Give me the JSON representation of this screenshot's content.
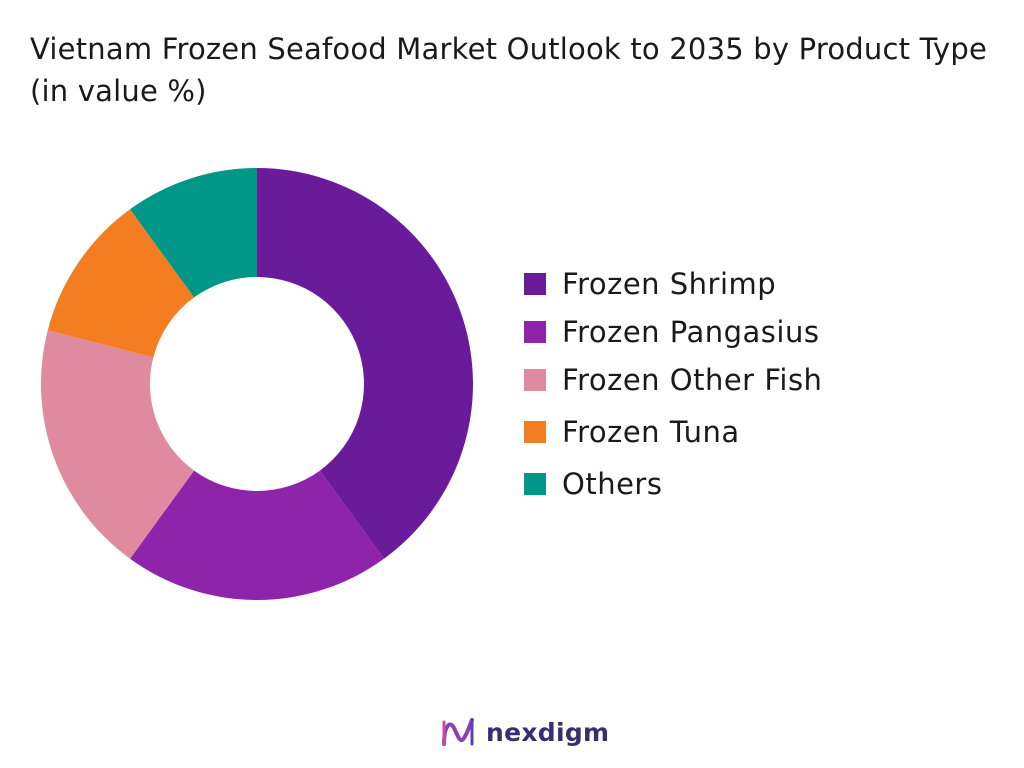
{
  "chart_data": {
    "type": "pie",
    "donut": true,
    "title": "Vietnam Frozen Seafood Market Outlook to 2035 by Product Type (in value %)",
    "categories": [
      "Frozen Shrimp",
      "Frozen Pangasius",
      "Frozen Other Fish",
      "Frozen Tuna",
      "Others"
    ],
    "values": [
      40,
      20,
      19,
      11,
      10
    ],
    "unit": "%",
    "colors": [
      "#6a1b9a",
      "#8e24aa",
      "#df8a9f",
      "#f47d22",
      "#009688"
    ],
    "legend_position": "right"
  },
  "branding": {
    "logo_text": "nexdigm",
    "logo_icon": "nexdigm-logo-icon"
  }
}
